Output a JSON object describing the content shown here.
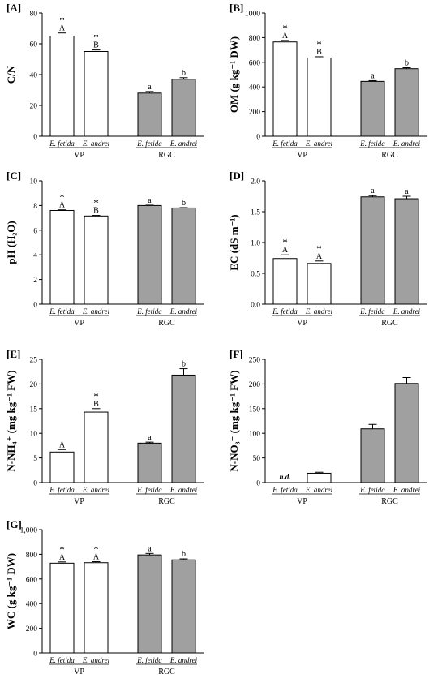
{
  "chart_data": [
    {
      "type": "bar",
      "panel_label": "[A]",
      "ylabel": "C/N",
      "ylim": [
        0,
        80
      ],
      "yticks": [
        "0",
        "20",
        "40",
        "60",
        "80"
      ],
      "categories": [
        "E. fetida",
        "E. andrei",
        "E. fetida",
        "E. andrei"
      ],
      "groups": [
        "VP",
        "RGC"
      ],
      "values": [
        65,
        55,
        28,
        37
      ],
      "errors": [
        2,
        1,
        1,
        1
      ],
      "colors": [
        "#ffffff",
        "#ffffff",
        "#a0a0a0",
        "#a0a0a0"
      ],
      "letters": [
        "A",
        "B",
        "a",
        "b"
      ],
      "stars": [
        "*",
        "*",
        "",
        ""
      ]
    },
    {
      "type": "bar",
      "panel_label": "[B]",
      "ylabel": "OM (g kg⁻¹ DW)",
      "ylim": [
        0,
        1000
      ],
      "yticks": [
        "0",
        "200",
        "400",
        "600",
        "800",
        "1000"
      ],
      "categories": [
        "E. fetida",
        "E. andrei",
        "E. fetida",
        "E. andrei"
      ],
      "groups": [
        "VP",
        "RGC"
      ],
      "values": [
        765,
        635,
        445,
        548
      ],
      "errors": [
        12,
        10,
        6,
        8
      ],
      "colors": [
        "#ffffff",
        "#ffffff",
        "#a0a0a0",
        "#a0a0a0"
      ],
      "letters": [
        "A",
        "B",
        "a",
        "b"
      ],
      "stars": [
        "*",
        "*",
        "",
        ""
      ]
    },
    {
      "type": "bar",
      "panel_label": "[C]",
      "ylabel": "pH (H₂O)",
      "ylim": [
        0,
        10
      ],
      "yticks": [
        "0",
        "2",
        "4",
        "6",
        "8",
        "10"
      ],
      "categories": [
        "E. fetida",
        "E. andrei",
        "E. fetida",
        "E. andrei"
      ],
      "groups": [
        "VP",
        "RGC"
      ],
      "values": [
        7.6,
        7.15,
        8.0,
        7.8
      ],
      "errors": [
        0.05,
        0.05,
        0.03,
        0.03
      ],
      "colors": [
        "#ffffff",
        "#ffffff",
        "#a0a0a0",
        "#a0a0a0"
      ],
      "letters": [
        "A",
        "B",
        "a",
        "b"
      ],
      "stars": [
        "*",
        "*",
        "",
        ""
      ]
    },
    {
      "type": "bar",
      "panel_label": "[D]",
      "ylabel": "EC (dS m⁻¹)",
      "ylim": [
        0,
        2.0
      ],
      "yticks": [
        "0.0",
        "0.5",
        "1.0",
        "1.5",
        "2.0"
      ],
      "categories": [
        "E. fetida",
        "E. andrei",
        "E. fetida",
        "E. andrei"
      ],
      "groups": [
        "VP",
        "RGC"
      ],
      "values": [
        0.74,
        0.66,
        1.74,
        1.71
      ],
      "errors": [
        0.06,
        0.04,
        0.02,
        0.04
      ],
      "colors": [
        "#ffffff",
        "#ffffff",
        "#a0a0a0",
        "#a0a0a0"
      ],
      "letters": [
        "A",
        "A",
        "a",
        "a"
      ],
      "stars": [
        "*",
        "*",
        "",
        ""
      ]
    },
    {
      "type": "bar",
      "panel_label": "[E]",
      "ylabel": "N-NH₄⁺ (mg kg⁻¹ FW)",
      "ylim": [
        0,
        25
      ],
      "yticks": [
        "0",
        "5",
        "10",
        "15",
        "20",
        "25"
      ],
      "categories": [
        "E. fetida",
        "E. andrei",
        "E. fetida",
        "E. andrei"
      ],
      "groups": [
        "VP",
        "RGC"
      ],
      "values": [
        6.2,
        14.3,
        8.0,
        21.8
      ],
      "errors": [
        0.5,
        0.7,
        0.2,
        1.3
      ],
      "colors": [
        "#ffffff",
        "#ffffff",
        "#a0a0a0",
        "#a0a0a0"
      ],
      "letters": [
        "A",
        "B",
        "a",
        "b"
      ],
      "stars": [
        "",
        "*",
        "",
        ""
      ]
    },
    {
      "type": "bar",
      "panel_label": "[F]",
      "ylabel": "N-NO₃⁻ (mg kg⁻¹ FW)",
      "ylim": [
        0,
        250
      ],
      "yticks": [
        "0",
        "50",
        "100",
        "150",
        "200",
        "250"
      ],
      "categories": [
        "E. fetida",
        "E. andrei",
        "E. fetida",
        "E. andrei"
      ],
      "groups": [
        "VP",
        "RGC"
      ],
      "values": [
        null,
        19,
        109,
        201
      ],
      "errors": [
        0,
        2,
        9,
        12
      ],
      "colors": [
        "#ffffff",
        "#ffffff",
        "#a0a0a0",
        "#a0a0a0"
      ],
      "letters": [
        "",
        "",
        "",
        ""
      ],
      "stars": [
        "",
        "",
        "",
        ""
      ],
      "missing_label": "n.d."
    },
    {
      "type": "bar",
      "panel_label": "[G]",
      "ylabel": "WC (g kg⁻¹ DW)",
      "ylim": [
        0,
        1000
      ],
      "yticks": [
        "0",
        "200",
        "400",
        "600",
        "800",
        "1,000"
      ],
      "categories": [
        "E. fetida",
        "E. andrei",
        "E. fetida",
        "E. andrei"
      ],
      "groups": [
        "VP",
        "RGC"
      ],
      "values": [
        728,
        732,
        795,
        755
      ],
      "errors": [
        10,
        8,
        12,
        8
      ],
      "colors": [
        "#ffffff",
        "#ffffff",
        "#a0a0a0",
        "#a0a0a0"
      ],
      "letters": [
        "A",
        "A",
        "a",
        "b"
      ],
      "stars": [
        "*",
        "*",
        "",
        ""
      ]
    }
  ]
}
